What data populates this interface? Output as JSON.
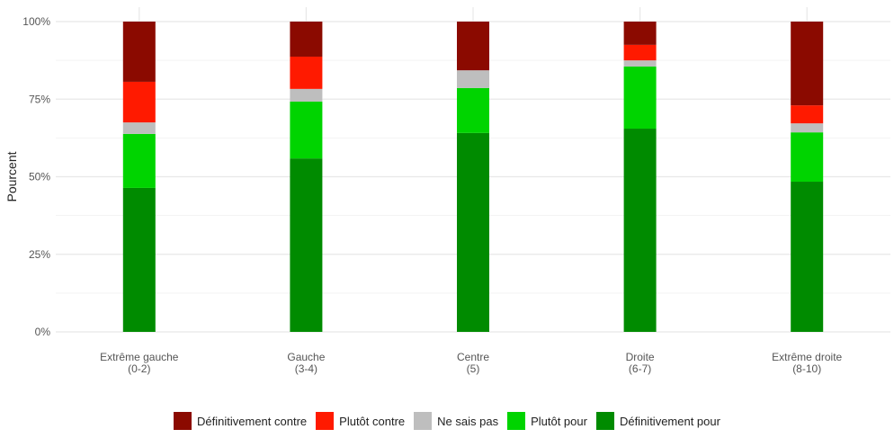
{
  "chart_data": {
    "type": "bar",
    "stacked": true,
    "ylabel": "Pourcent",
    "xlabel": "",
    "ylim": [
      0,
      100
    ],
    "yticks": [
      "0%",
      "25%",
      "50%",
      "75%",
      "100%"
    ],
    "categories": [
      [
        "Extrême gauche",
        "(0-2)"
      ],
      [
        "Gauche",
        "(3-4)"
      ],
      [
        "Centre",
        "(5)"
      ],
      [
        "Droite",
        "(6-7)"
      ],
      [
        "Extrême droite",
        "(8-10)"
      ]
    ],
    "series": [
      {
        "name": "Définitivement pour",
        "color": "#008B00",
        "values": [
          46.4,
          55.9,
          64.1,
          65.5,
          48.4
        ]
      },
      {
        "name": "Plutôt pour",
        "color": "#00D400",
        "values": [
          17.4,
          18.3,
          14.5,
          20.0,
          15.9
        ]
      },
      {
        "name": "Ne sais pas",
        "color": "#BEBEBE",
        "values": [
          3.7,
          4.1,
          5.7,
          2.0,
          2.9
        ]
      },
      {
        "name": "Plutôt contre",
        "color": "#FF1A00",
        "values": [
          13.1,
          10.4,
          0,
          5.0,
          5.8
        ]
      },
      {
        "name": "Définitivement contre",
        "color": "#8B0A00",
        "values": [
          19.4,
          11.3,
          15.7,
          7.5,
          27.0
        ]
      }
    ],
    "legend_order": [
      "Définitivement contre",
      "Plutôt contre",
      "Ne sais pas",
      "Plutôt pour",
      "Définitivement pour"
    ],
    "legend_position": "bottom",
    "grid": true
  }
}
